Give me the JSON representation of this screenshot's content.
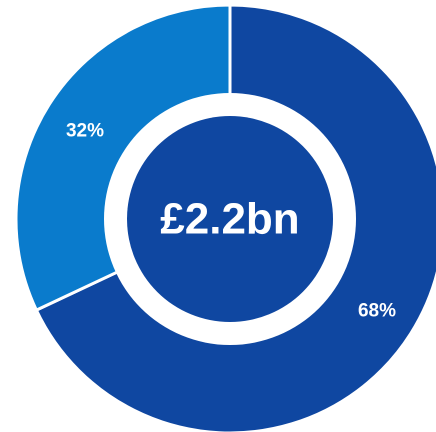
{
  "chart_data": {
    "type": "pie",
    "variant": "donut",
    "center_label": "£2.2bn",
    "slices": [
      {
        "value": 68,
        "label": "68%",
        "color": "#0f47a1"
      },
      {
        "value": 32,
        "label": "32%",
        "color": "#0a7bcc"
      }
    ],
    "center_color": "#0f47a1",
    "ring_gap_color": "#ffffff"
  }
}
